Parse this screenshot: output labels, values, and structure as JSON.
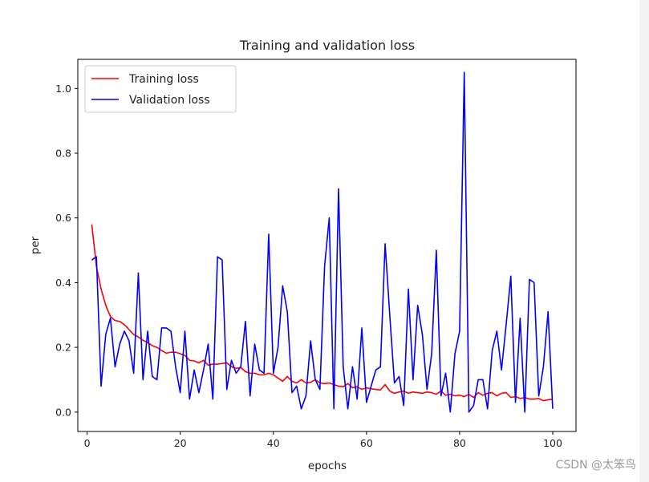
{
  "chart_data": {
    "type": "line",
    "title": "Training and validation loss",
    "xlabel": "epochs",
    "ylabel": "per",
    "xlim": [
      -2,
      105
    ],
    "ylim": [
      -0.06,
      1.09
    ],
    "xticks": [
      0,
      20,
      40,
      60,
      80,
      100
    ],
    "xtick_labels": [
      "0",
      "20",
      "40",
      "60",
      "80",
      "100"
    ],
    "yticks": [
      0.0,
      0.2,
      0.4,
      0.6,
      0.8,
      1.0
    ],
    "ytick_labels": [
      "0.0",
      "0.2",
      "0.4",
      "0.6",
      "0.8",
      "1.0"
    ],
    "legend_position": "top-left",
    "series": [
      {
        "name": "Training loss",
        "color": "#ff0000",
        "x_start": 1,
        "values": [
          0.58,
          0.45,
          0.38,
          0.33,
          0.295,
          0.283,
          0.28,
          0.27,
          0.255,
          0.24,
          0.232,
          0.222,
          0.215,
          0.205,
          0.2,
          0.19,
          0.182,
          0.185,
          0.185,
          0.18,
          0.175,
          0.16,
          0.158,
          0.152,
          0.16,
          0.145,
          0.148,
          0.148,
          0.15,
          0.152,
          0.14,
          0.135,
          0.138,
          0.125,
          0.12,
          0.12,
          0.115,
          0.115,
          0.12,
          0.115,
          0.105,
          0.095,
          0.11,
          0.095,
          0.09,
          0.1,
          0.09,
          0.092,
          0.1,
          0.09,
          0.088,
          0.09,
          0.085,
          0.08,
          0.078,
          0.088,
          0.075,
          0.078,
          0.07,
          0.075,
          0.072,
          0.07,
          0.068,
          0.085,
          0.065,
          0.058,
          0.062,
          0.065,
          0.058,
          0.062,
          0.06,
          0.058,
          0.062,
          0.06,
          0.055,
          0.065,
          0.052,
          0.055,
          0.05,
          0.052,
          0.048,
          0.055,
          0.045,
          0.06,
          0.052,
          0.058,
          0.06,
          0.05,
          0.058,
          0.06,
          0.045,
          0.048,
          0.042,
          0.045,
          0.04,
          0.04,
          0.042,
          0.035,
          0.038,
          0.04
        ]
      },
      {
        "name": "Validation loss",
        "color": "#0000ff",
        "x_start": 1,
        "values": [
          0.47,
          0.48,
          0.08,
          0.24,
          0.29,
          0.14,
          0.21,
          0.25,
          0.22,
          0.12,
          0.43,
          0.1,
          0.25,
          0.11,
          0.1,
          0.26,
          0.26,
          0.25,
          0.14,
          0.06,
          0.25,
          0.04,
          0.13,
          0.06,
          0.13,
          0.21,
          0.04,
          0.48,
          0.47,
          0.07,
          0.16,
          0.12,
          0.14,
          0.28,
          0.05,
          0.21,
          0.13,
          0.12,
          0.55,
          0.12,
          0.2,
          0.39,
          0.31,
          0.06,
          0.08,
          0.01,
          0.05,
          0.22,
          0.1,
          0.07,
          0.45,
          0.6,
          0.01,
          0.69,
          0.14,
          0.01,
          0.14,
          0.04,
          0.26,
          0.03,
          0.08,
          0.13,
          0.14,
          0.52,
          0.3,
          0.09,
          0.11,
          0.02,
          0.38,
          0.1,
          0.33,
          0.24,
          0.07,
          0.18,
          0.5,
          0.05,
          0.12,
          0.0,
          0.18,
          0.25,
          1.05,
          0.0,
          0.02,
          0.1,
          0.1,
          0.01,
          0.19,
          0.25,
          0.13,
          0.27,
          0.42,
          0.03,
          0.29,
          0.0,
          0.41,
          0.4,
          0.05,
          0.14,
          0.31,
          0.01
        ]
      }
    ]
  },
  "watermark": "CSDN @太笨鸟"
}
